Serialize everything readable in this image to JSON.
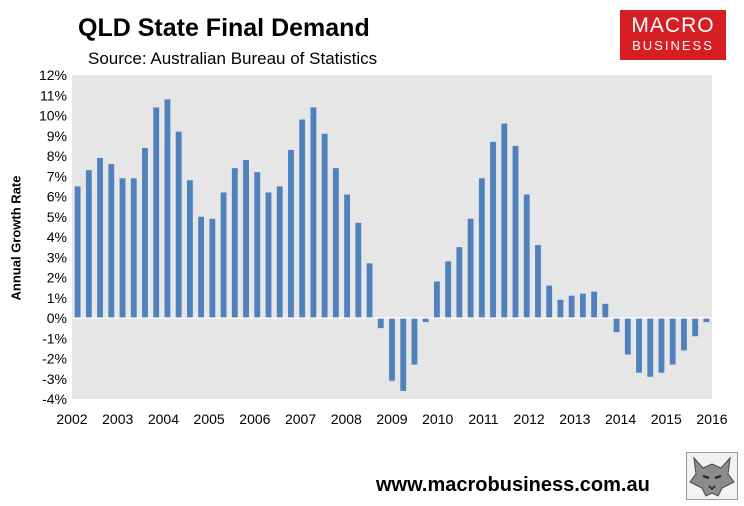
{
  "title": "QLD State Final Demand",
  "subtitle": "Source: Australian Bureau of Statistics",
  "logo": {
    "line1": "MACRO",
    "line2": "BUSINESS"
  },
  "footer": "www.macrobusiness.com.au",
  "colors": {
    "bar": "#4f81bd",
    "plot_bg": "#e6e6e6",
    "logo_bg": "#d71e24"
  },
  "chart_data": {
    "type": "bar",
    "title": "QLD State Final Demand",
    "subtitle": "Source: Australian Bureau of Statistics",
    "xlabel": "",
    "ylabel": "Annual Growth Rate",
    "ylim": [
      -4,
      12
    ],
    "y_ticks": [
      -4,
      -3,
      -2,
      -1,
      0,
      1,
      2,
      3,
      4,
      5,
      6,
      7,
      8,
      9,
      10,
      11,
      12
    ],
    "y_tick_format": "%",
    "x_ticks": [
      "2002",
      "2003",
      "2004",
      "2005",
      "2006",
      "2007",
      "2008",
      "2009",
      "2010",
      "2011",
      "2012",
      "2013",
      "2014",
      "2015",
      "2016"
    ],
    "grid": false,
    "frequency": "quarterly",
    "series": [
      {
        "name": "",
        "values": [
          6.5,
          7.3,
          7.9,
          7.6,
          6.9,
          6.9,
          8.4,
          10.4,
          10.8,
          9.2,
          6.8,
          5.0,
          4.9,
          6.2,
          7.4,
          7.8,
          7.2,
          6.2,
          6.5,
          8.3,
          9.8,
          10.4,
          9.1,
          7.4,
          6.1,
          4.7,
          2.7,
          -0.5,
          -3.1,
          -3.6,
          -2.3,
          -0.2,
          1.8,
          2.8,
          3.5,
          4.9,
          6.9,
          8.7,
          9.6,
          8.5,
          6.1,
          3.6,
          1.6,
          0.9,
          1.1,
          1.2,
          1.3,
          0.7,
          -0.7,
          -1.8,
          -2.7,
          -2.9,
          -2.7,
          -2.3,
          -1.6,
          -0.9,
          -0.2
        ]
      }
    ]
  }
}
